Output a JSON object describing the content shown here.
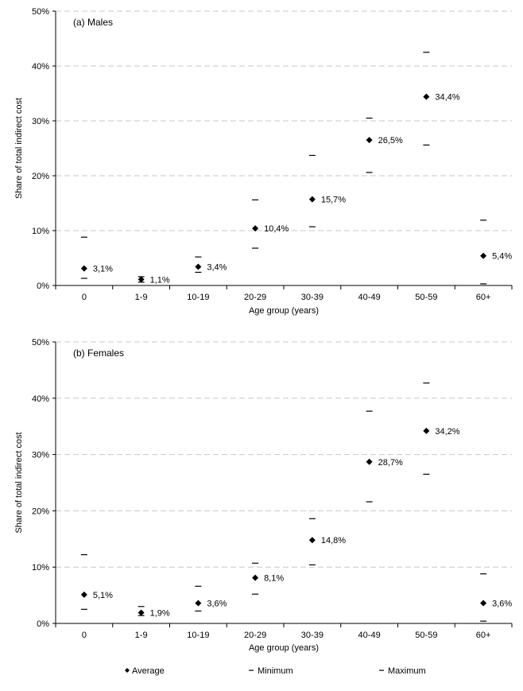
{
  "legend": {
    "average": "Average",
    "minimum": "Minimum",
    "maximum": "Maximum",
    "placement": "bottom"
  },
  "chart_data": [
    {
      "type": "scatter",
      "panel_label": "(a) Males",
      "xlabel": "Age group (years)",
      "ylabel": "Share of total indirect cost",
      "categories": [
        "0",
        "1-9",
        "10-19",
        "20-29",
        "30-39",
        "40-49",
        "50-59",
        "60+"
      ],
      "ylim": [
        0,
        50
      ],
      "yticks": [
        "0%",
        "10%",
        "20%",
        "30%",
        "40%",
        "50%"
      ],
      "grid": true,
      "series": [
        {
          "name": "Average",
          "values": [
            3.1,
            1.1,
            3.4,
            10.4,
            15.7,
            26.5,
            34.4,
            5.4
          ]
        },
        {
          "name": "Minimum",
          "values": [
            1.3,
            0.6,
            2.4,
            6.8,
            10.7,
            20.6,
            25.6,
            0.3
          ]
        },
        {
          "name": "Maximum",
          "values": [
            8.8,
            1.6,
            5.2,
            15.6,
            23.7,
            30.5,
            42.5,
            11.9
          ]
        }
      ],
      "data_labels": [
        "3,1%",
        "1,1%",
        "3,4%",
        "10,4%",
        "15,7%",
        "26,5%",
        "34,4%",
        "5,4%"
      ]
    },
    {
      "type": "scatter",
      "panel_label": "(b) Females",
      "xlabel": "Age group (years)",
      "ylabel": "Share of total indirect cost",
      "categories": [
        "0",
        "1-9",
        "10-19",
        "20-29",
        "30-39",
        "40-49",
        "50-59",
        "60+"
      ],
      "ylim": [
        0,
        50
      ],
      "yticks": [
        "0%",
        "10%",
        "20%",
        "30%",
        "40%",
        "50%"
      ],
      "grid": true,
      "series": [
        {
          "name": "Average",
          "values": [
            5.1,
            1.9,
            3.6,
            8.1,
            14.8,
            28.7,
            34.2,
            3.6
          ]
        },
        {
          "name": "Minimum",
          "values": [
            2.5,
            1.4,
            2.2,
            5.2,
            10.4,
            21.6,
            26.5,
            0.4
          ]
        },
        {
          "name": "Maximum",
          "values": [
            12.2,
            3.0,
            6.6,
            10.7,
            18.6,
            37.7,
            42.7,
            8.8
          ]
        }
      ],
      "data_labels": [
        "5,1%",
        "1,9%",
        "3,6%",
        "8,1%",
        "14,8%",
        "28,7%",
        "34,2%",
        "3,6%"
      ]
    }
  ],
  "colors": {
    "marker": "#000000",
    "grid": "#c8c8c8",
    "axis": "#000000"
  }
}
